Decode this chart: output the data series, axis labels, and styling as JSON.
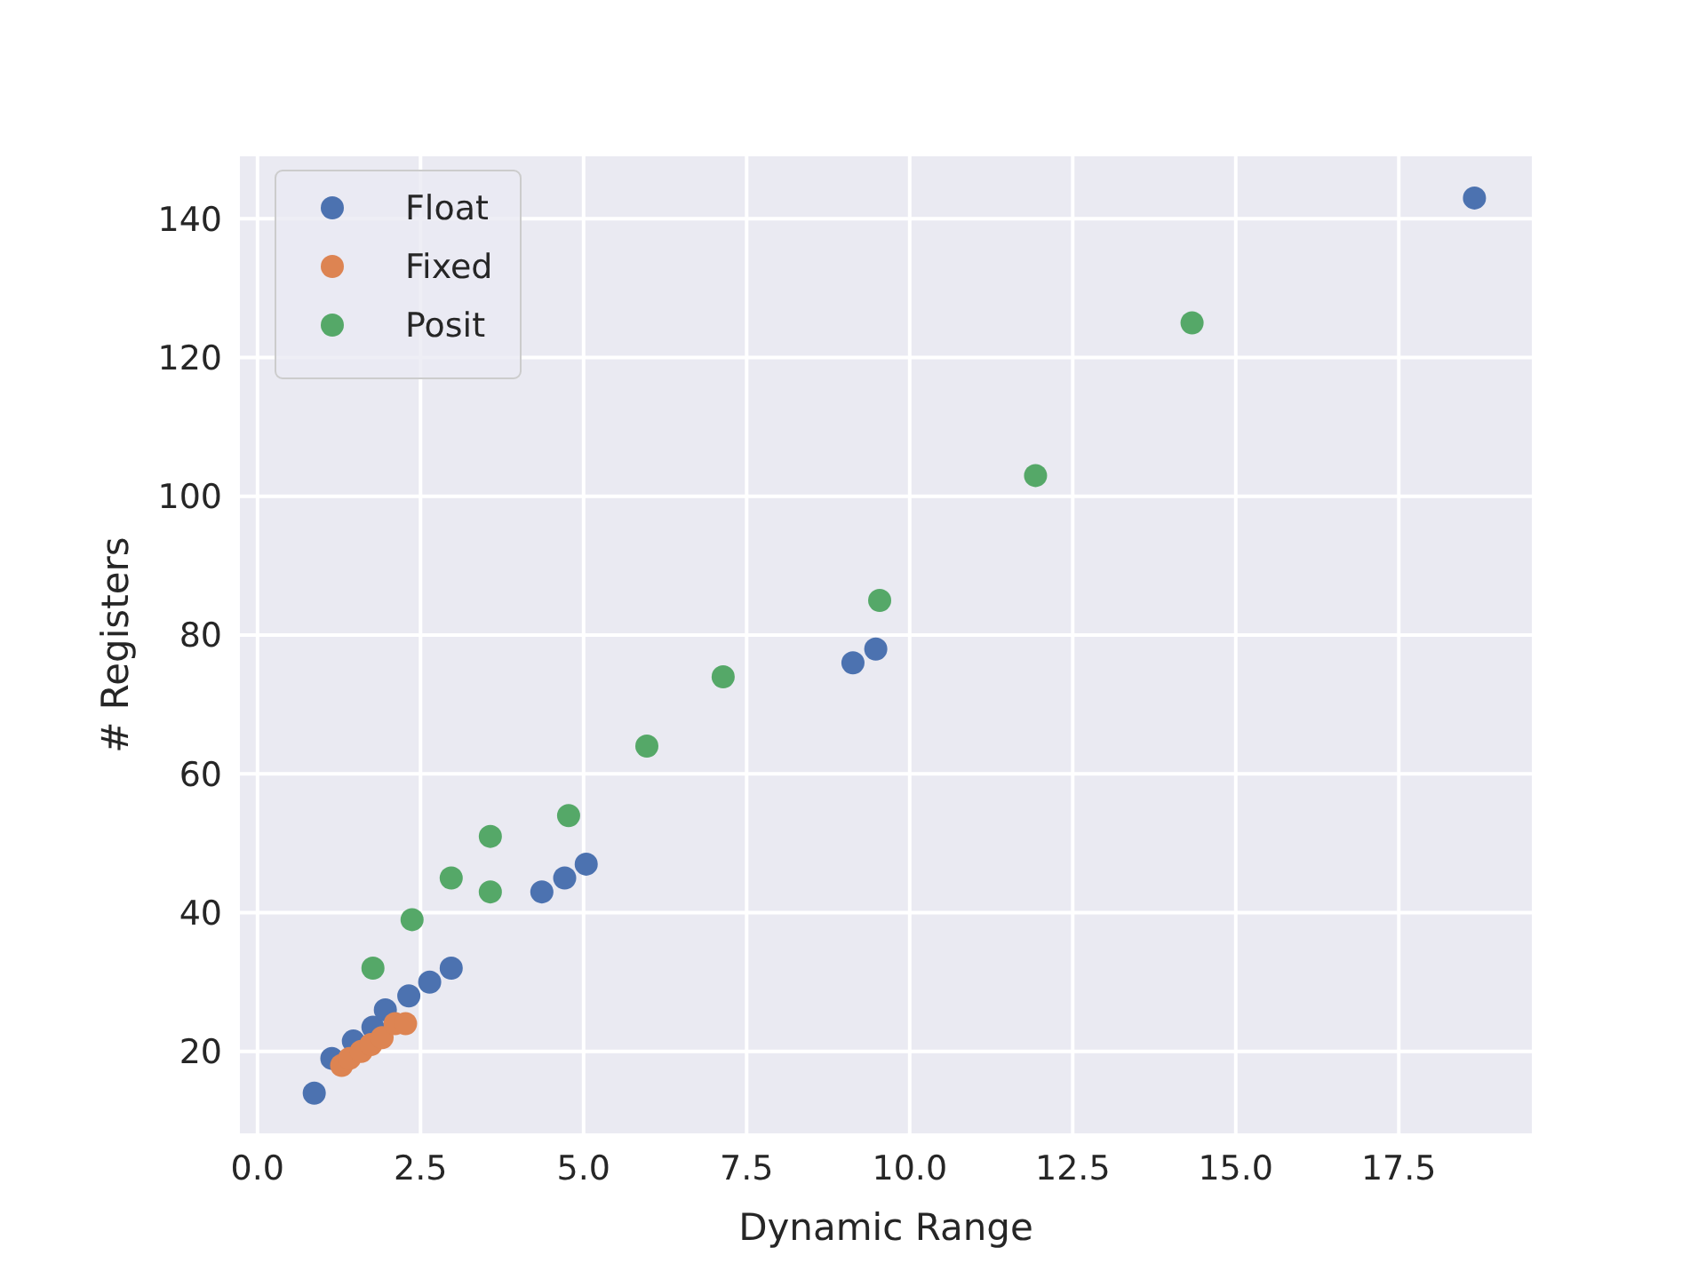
{
  "chart_data": {
    "type": "scatter",
    "xlabel": "Dynamic Range",
    "ylabel": "# Registers",
    "xlim": [
      -0.27,
      19.54
    ],
    "ylim": [
      8.2,
      149
    ],
    "xticks": [
      {
        "value": 0,
        "label": "0.0"
      },
      {
        "value": 2.5,
        "label": "2.5"
      },
      {
        "value": 5,
        "label": "5.0"
      },
      {
        "value": 7.5,
        "label": "7.5"
      },
      {
        "value": 10,
        "label": "10.0"
      },
      {
        "value": 12.5,
        "label": "12.5"
      },
      {
        "value": 15,
        "label": "15.0"
      },
      {
        "value": 17.5,
        "label": "17.5"
      }
    ],
    "yticks": [
      20,
      40,
      60,
      80,
      100,
      120,
      140
    ],
    "grid": true,
    "legend": "top left",
    "marker": "circle",
    "series": [
      {
        "name": "Float",
        "color": "#4c72b0",
        "x": [
          0.87,
          1.14,
          1.47,
          1.77,
          1.96,
          2.32,
          2.64,
          2.97,
          4.36,
          4.71,
          5.04,
          9.13,
          9.48,
          18.66
        ],
        "values": [
          14,
          19,
          21.5,
          23.5,
          26,
          28,
          30,
          32,
          43,
          45,
          47,
          76,
          78,
          143
        ]
      },
      {
        "name": "Fixed",
        "color": "#dd8452",
        "x": [
          1.29,
          1.41,
          1.59,
          1.74,
          1.91,
          2.11,
          2.27
        ],
        "values": [
          18,
          19,
          20,
          21,
          22,
          24,
          24
        ]
      },
      {
        "name": "Posit",
        "color": "#55a868",
        "x": [
          1.77,
          2.37,
          2.97,
          3.57,
          3.57,
          4.77,
          5.97,
          7.14,
          9.54,
          11.93,
          14.33
        ],
        "values": [
          32,
          39,
          45,
          51,
          43,
          54,
          64,
          74,
          85,
          103,
          125
        ]
      }
    ]
  }
}
